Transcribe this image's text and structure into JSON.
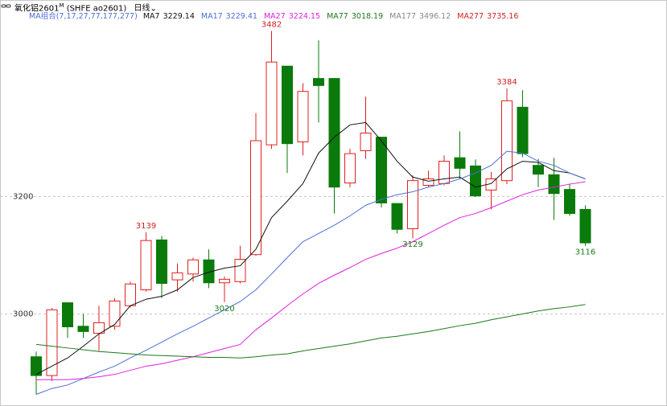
{
  "chart_data": {
    "type": "candlestick",
    "title": "氧化铝2601",
    "title_sup": "M",
    "subtitle": "(SHFE ao2601)",
    "period": "日线",
    "indicator": "MA组合(7,17,27,77,177,277)",
    "up_color": "#e02020",
    "down_color": "#0a7a0a",
    "ylim": [
      2850,
      3510
    ],
    "yticks": [
      3000,
      3200
    ],
    "grid": true,
    "ohlc": {
      "open": [
        2927,
        2895,
        3019,
        2979,
        2967,
        2979,
        3014,
        3041,
        3126,
        3058,
        3068,
        3092,
        3053,
        3055,
        3101,
        3288,
        3422,
        3293,
        3401,
        3401,
        3223,
        3278,
        3301,
        3188,
        3145,
        3219,
        3222,
        3266,
        3252,
        3211,
        3227,
        3352,
        3253,
        3237,
        3212,
        3178
      ],
      "high": [
        2936,
        3010,
        3019,
        3000,
        3014,
        3027,
        3055,
        3139,
        3133,
        3086,
        3096,
        3110,
        3064,
        3116,
        3342,
        3482,
        3422,
        3393,
        3466,
        3401,
        3281,
        3370,
        3301,
        3188,
        3236,
        3244,
        3270,
        3311,
        3263,
        3242,
        3384,
        3381,
        3264,
        3266,
        3222,
        3185
      ],
      "low": [
        2863,
        2886,
        2959,
        2959,
        2937,
        2973,
        3011,
        3038,
        3027,
        3038,
        3055,
        3044,
        3020,
        3052,
        3099,
        3281,
        3240,
        3270,
        3326,
        3171,
        3216,
        3264,
        3181,
        3137,
        3129,
        3216,
        3219,
        3230,
        3199,
        3178,
        3221,
        3267,
        3216,
        3160,
        3167,
        3116
      ],
      "close": [
        2895,
        3007,
        2978,
        2970,
        2985,
        3022,
        3051,
        3125,
        3052,
        3070,
        3092,
        3053,
        3059,
        3093,
        3295,
        3429,
        3290,
        3379,
        3389,
        3216,
        3273,
        3308,
        3189,
        3144,
        3227,
        3230,
        3260,
        3248,
        3201,
        3230,
        3363,
        3273,
        3238,
        3205,
        3171,
        3121
      ]
    },
    "high_labels": [
      7,
      15,
      30
    ],
    "low_labels": [
      12,
      24,
      35
    ],
    "moving_averages": [
      {
        "name": "MA7",
        "color": "#111111",
        "last": 3229.14,
        "values": [
          2897,
          2911,
          2925,
          2945,
          2966,
          2982,
          3014,
          3025,
          3030,
          3041,
          3062,
          3071,
          3078,
          3082,
          3110,
          3164,
          3192,
          3222,
          3274,
          3301,
          3322,
          3326,
          3295,
          3260,
          3233,
          3226,
          3230,
          3233,
          3216,
          3222,
          3247,
          3260,
          3258,
          3244,
          3240,
          3230
        ]
      },
      {
        "name": "MA17",
        "color": "#4a6fd8",
        "last": 3229.41,
        "values": [
          2863,
          2873,
          2879,
          2890,
          2901,
          2911,
          2925,
          2938,
          2952,
          2966,
          2979,
          2993,
          3007,
          3021,
          3041,
          3068,
          3096,
          3123,
          3137,
          3151,
          3167,
          3185,
          3195,
          3203,
          3208,
          3216,
          3222,
          3230,
          3240,
          3253,
          3277,
          3274,
          3260,
          3253,
          3240,
          3230
        ]
      },
      {
        "name": "MA27",
        "color": "#e020e0",
        "last": 3224.15,
        "values": [
          2888,
          2888,
          2888,
          2890,
          2893,
          2897,
          2904,
          2911,
          2915,
          2921,
          2927,
          2934,
          2941,
          2948,
          2973,
          2993,
          3014,
          3034,
          3052,
          3066,
          3079,
          3093,
          3103,
          3112,
          3123,
          3137,
          3151,
          3164,
          3171,
          3181,
          3192,
          3203,
          3211,
          3216,
          3221,
          3225
        ]
      },
      {
        "name": "MA77",
        "color": "#1a7a1a",
        "last": 3018.19,
        "values": [
          2948,
          2945,
          2942,
          2939,
          2936,
          2934,
          2932,
          2930,
          2929,
          2928,
          2927,
          2926,
          2926,
          2925,
          2927,
          2930,
          2932,
          2937,
          2941,
          2945,
          2949,
          2954,
          2959,
          2962,
          2966,
          2970,
          2975,
          2980,
          2984,
          2990,
          2995,
          3000,
          3005,
          3009,
          3012,
          3016
        ]
      },
      {
        "name": "MA177",
        "color": "#888888",
        "last": 3496.12
      },
      {
        "name": "MA277",
        "color": "#d02020",
        "last": 3735.16
      }
    ]
  }
}
